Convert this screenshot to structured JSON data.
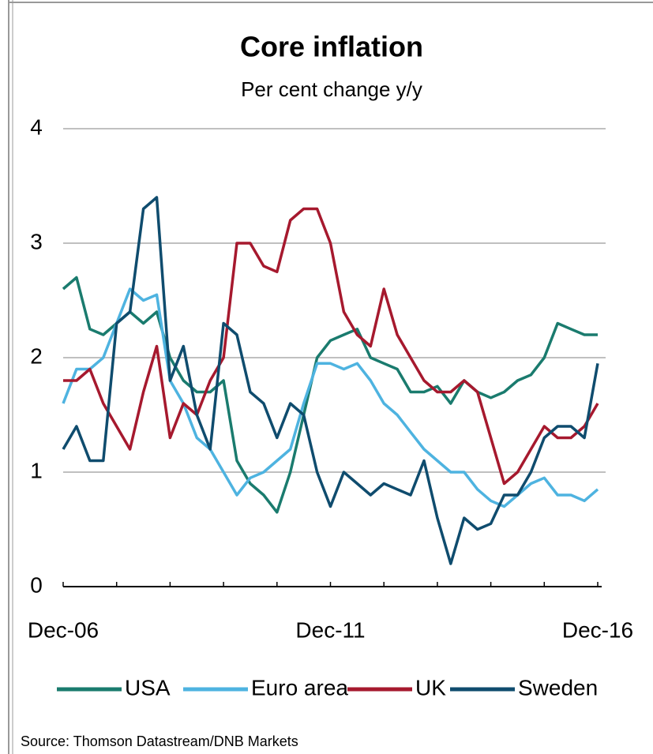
{
  "chart_data": {
    "type": "line",
    "title": "Core inflation",
    "subtitle": "Per cent change y/y",
    "categories": [
      "Dec-06",
      null,
      null,
      null,
      null,
      null,
      null,
      null,
      null,
      null,
      null,
      null,
      null,
      null,
      null,
      null,
      null,
      null,
      null,
      null,
      "Dec-11",
      null,
      null,
      null,
      null,
      null,
      null,
      null,
      null,
      null,
      null,
      null,
      null,
      null,
      null,
      null,
      null,
      null,
      null,
      null,
      "Dec-16"
    ],
    "series": [
      {
        "name": "USA",
        "color": "#1a7b6e",
        "values": [
          2.6,
          2.7,
          2.25,
          2.2,
          2.3,
          2.4,
          2.3,
          2.4,
          2.0,
          1.8,
          1.7,
          1.7,
          1.8,
          1.1,
          0.9,
          0.8,
          0.65,
          1.0,
          1.5,
          2.0,
          2.15,
          2.2,
          2.25,
          2.0,
          1.95,
          1.9,
          1.7,
          1.7,
          1.75,
          1.6,
          1.8,
          1.7,
          1.65,
          1.7,
          1.8,
          1.85,
          2.0,
          2.3,
          2.25,
          2.2,
          2.2
        ]
      },
      {
        "name": "Euro area",
        "color": "#4eb3e0",
        "values": [
          1.6,
          1.9,
          1.9,
          2.0,
          2.3,
          2.6,
          2.5,
          2.55,
          1.8,
          1.6,
          1.3,
          1.2,
          1.0,
          0.8,
          0.95,
          1.0,
          1.1,
          1.2,
          1.6,
          1.95,
          1.95,
          1.9,
          1.95,
          1.8,
          1.6,
          1.5,
          1.35,
          1.2,
          1.1,
          1.0,
          1.0,
          0.85,
          0.75,
          0.7,
          0.8,
          0.9,
          0.95,
          0.8,
          0.8,
          0.75,
          0.85
        ]
      },
      {
        "name": "UK",
        "color": "#a6192e",
        "values": [
          1.8,
          1.8,
          1.9,
          1.6,
          1.4,
          1.2,
          1.7,
          2.1,
          1.3,
          1.6,
          1.5,
          1.8,
          2.0,
          3.0,
          3.0,
          2.8,
          2.75,
          3.2,
          3.3,
          3.3,
          3.0,
          2.4,
          2.2,
          2.1,
          2.6,
          2.2,
          2.0,
          1.8,
          1.7,
          1.7,
          1.8,
          1.7,
          1.3,
          0.9,
          1.0,
          1.2,
          1.4,
          1.3,
          1.3,
          1.4,
          1.6
        ]
      },
      {
        "name": "Sweden",
        "color": "#0f4c6e",
        "values": [
          1.2,
          1.4,
          1.1,
          1.1,
          2.3,
          2.4,
          3.3,
          3.4,
          1.8,
          2.1,
          1.5,
          1.2,
          2.3,
          2.2,
          1.7,
          1.6,
          1.3,
          1.6,
          1.5,
          1.0,
          0.7,
          1.0,
          0.9,
          0.8,
          0.9,
          0.85,
          0.8,
          1.1,
          0.6,
          0.2,
          0.6,
          0.5,
          0.55,
          0.8,
          0.8,
          1.0,
          1.3,
          1.4,
          1.4,
          1.3,
          1.95
        ]
      }
    ],
    "ylim": [
      0,
      4
    ],
    "yticks": [
      0,
      1,
      2,
      3,
      4
    ],
    "grid": true,
    "source": "Source: Thomson Datastream/DNB Markets"
  }
}
